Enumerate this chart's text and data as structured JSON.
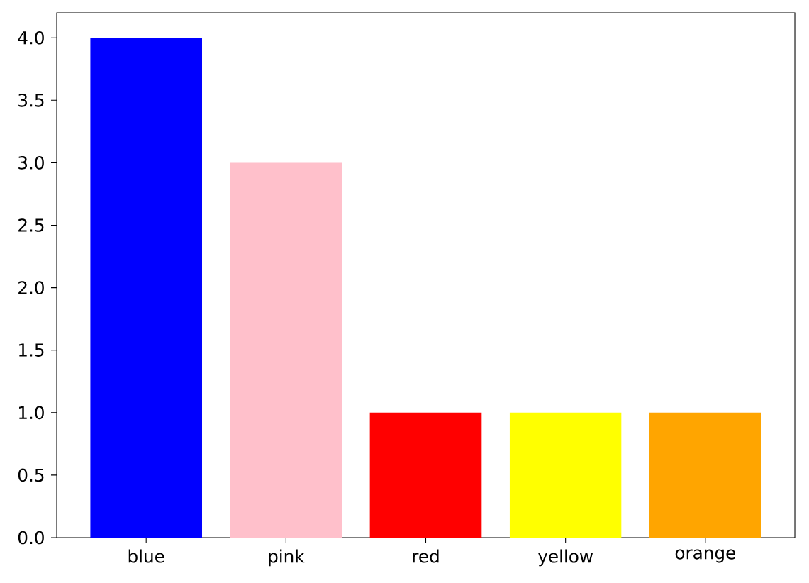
{
  "chart_data": {
    "type": "bar",
    "categories": [
      "blue",
      "pink",
      "red",
      "yellow",
      "orange"
    ],
    "values": [
      4,
      3,
      1,
      1,
      1
    ],
    "colors": [
      "#0000ff",
      "#ffc0cb",
      "#ff0000",
      "#ffff00",
      "#ffa500"
    ],
    "ylim": [
      0,
      4.2
    ],
    "yticks": [
      {
        "value": 0,
        "label": "0.0"
      },
      {
        "value": 0.5,
        "label": "0.5"
      },
      {
        "value": 1,
        "label": "1.0"
      },
      {
        "value": 1.5,
        "label": "1.5"
      },
      {
        "value": 2,
        "label": "2.0"
      },
      {
        "value": 2.5,
        "label": "2.5"
      },
      {
        "value": 3,
        "label": "3.0"
      },
      {
        "value": 3.5,
        "label": "3.5"
      },
      {
        "value": 4,
        "label": "4.0"
      }
    ]
  }
}
